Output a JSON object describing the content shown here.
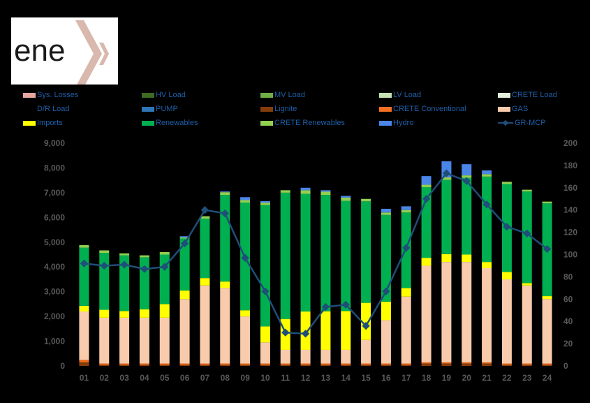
{
  "logo": {
    "text": "ene",
    "colors": {
      "text": "#1a1a1a",
      "chevron": "#d9b8ad"
    }
  },
  "colors": {
    "sys_losses": "#e6a6a0",
    "hv_load": "#3d6b21",
    "mv_load": "#70ad47",
    "lv_load": "#c5e0b4",
    "crete_load": "#e2efda",
    "dr_load": "#000000",
    "pump": "#2e75b6",
    "lignite": "#843c0c",
    "crete_conventional": "#f36f21",
    "gas": "#f8cbad",
    "imports": "#ffff00",
    "renewables": "#00b050",
    "crete_renewables": "#92d050",
    "hydro": "#4a86e8",
    "gr_mcp": "#1f4e79",
    "tick": "#595959",
    "legend_text": "#1f5fa8"
  },
  "chart_data": {
    "type": "bar",
    "stacked": true,
    "categories": [
      "01",
      "02",
      "03",
      "04",
      "05",
      "06",
      "07",
      "08",
      "09",
      "10",
      "11",
      "12",
      "13",
      "14",
      "15",
      "16",
      "17",
      "18",
      "19",
      "20",
      "21",
      "22",
      "23",
      "24"
    ],
    "y_left": {
      "min": 0,
      "max": 9000,
      "ticks": [
        "0",
        "1,000",
        "2,000",
        "3,000",
        "4,000",
        "5,000",
        "6,000",
        "7,000",
        "8,000",
        "9,000"
      ]
    },
    "y_right": {
      "min": 0,
      "max": 200,
      "ticks": [
        "0",
        "20",
        "40",
        "60",
        "80",
        "100",
        "120",
        "140",
        "160",
        "180",
        "200"
      ]
    },
    "grid": false,
    "legend_position": "top",
    "legend": [
      {
        "name": "Sys. Losses",
        "key": "sys_losses",
        "kind": "bar"
      },
      {
        "name": "HV Load",
        "key": "hv_load",
        "kind": "bar"
      },
      {
        "name": "MV Load",
        "key": "mv_load",
        "kind": "bar"
      },
      {
        "name": "LV Load",
        "key": "lv_load",
        "kind": "bar"
      },
      {
        "name": "CRETE Load",
        "key": "crete_load",
        "kind": "bar"
      },
      {
        "name": "D/R Load",
        "key": "dr_load",
        "kind": "bar"
      },
      {
        "name": "PUMP",
        "key": "pump",
        "kind": "bar"
      },
      {
        "name": "Lignite",
        "key": "lignite",
        "kind": "bar"
      },
      {
        "name": "CRETE Conventional",
        "key": "crete_conventional",
        "kind": "bar"
      },
      {
        "name": "GAS",
        "key": "gas",
        "kind": "bar"
      },
      {
        "name": "Imports",
        "key": "imports",
        "kind": "bar"
      },
      {
        "name": "Renewables",
        "key": "renewables",
        "kind": "bar"
      },
      {
        "name": "CRETE Renewables",
        "key": "crete_renewables",
        "kind": "bar"
      },
      {
        "name": "Hydro",
        "key": "hydro",
        "kind": "bar"
      },
      {
        "name": "GR-MCP",
        "key": "gr_mcp",
        "kind": "line"
      }
    ],
    "series": [
      {
        "name": "Lignite",
        "key": "lignite",
        "axis": "left",
        "values": [
          150,
          50,
          50,
          50,
          50,
          50,
          50,
          50,
          50,
          50,
          50,
          50,
          50,
          50,
          50,
          50,
          50,
          100,
          100,
          100,
          100,
          50,
          50,
          50
        ]
      },
      {
        "name": "CRETE Conventional",
        "key": "crete_conventional",
        "axis": "left",
        "values": [
          100,
          50,
          50,
          50,
          50,
          50,
          50,
          50,
          50,
          50,
          50,
          50,
          50,
          50,
          50,
          50,
          50,
          50,
          50,
          50,
          50,
          50,
          50,
          50
        ]
      },
      {
        "name": "GAS",
        "key": "gas",
        "axis": "left",
        "values": [
          1950,
          1850,
          1850,
          1850,
          1850,
          2600,
          3150,
          3050,
          1900,
          850,
          550,
          550,
          550,
          550,
          950,
          1750,
          2700,
          3900,
          4050,
          4050,
          3800,
          3400,
          3150,
          2600
        ]
      },
      {
        "name": "Imports",
        "key": "imports",
        "axis": "left",
        "values": [
          230,
          320,
          270,
          340,
          550,
          350,
          300,
          260,
          250,
          650,
          1250,
          1550,
          1560,
          1570,
          1500,
          750,
          350,
          320,
          320,
          300,
          250,
          300,
          100,
          120
        ]
      },
      {
        "name": "Renewables",
        "key": "renewables",
        "axis": "left",
        "values": [
          2350,
          2300,
          2250,
          2100,
          2000,
          2100,
          2400,
          3500,
          4350,
          4900,
          5100,
          4750,
          4700,
          4450,
          4100,
          3500,
          3050,
          2850,
          3000,
          3100,
          3450,
          3550,
          3700,
          3750
        ]
      },
      {
        "name": "CRETE Renewables",
        "key": "crete_renewables",
        "axis": "left",
        "values": [
          100,
          100,
          80,
          80,
          100,
          40,
          100,
          110,
          100,
          100,
          100,
          150,
          130,
          130,
          100,
          100,
          100,
          100,
          100,
          100,
          100,
          90,
          70,
          70
        ]
      },
      {
        "name": "Hydro",
        "key": "hydro",
        "axis": "left",
        "values": [
          0,
          0,
          0,
          0,
          0,
          50,
          0,
          30,
          120,
          60,
          0,
          100,
          60,
          70,
          0,
          150,
          150,
          350,
          650,
          450,
          150,
          0,
          0,
          0
        ]
      },
      {
        "name": "GR-MCP",
        "key": "gr_mcp",
        "axis": "right",
        "type": "line",
        "values": [
          92,
          90,
          91,
          87,
          89,
          110,
          140,
          137,
          97,
          67,
          30,
          29,
          53,
          55,
          36,
          67,
          106,
          150,
          173,
          166,
          145,
          125,
          119,
          105
        ]
      }
    ]
  }
}
